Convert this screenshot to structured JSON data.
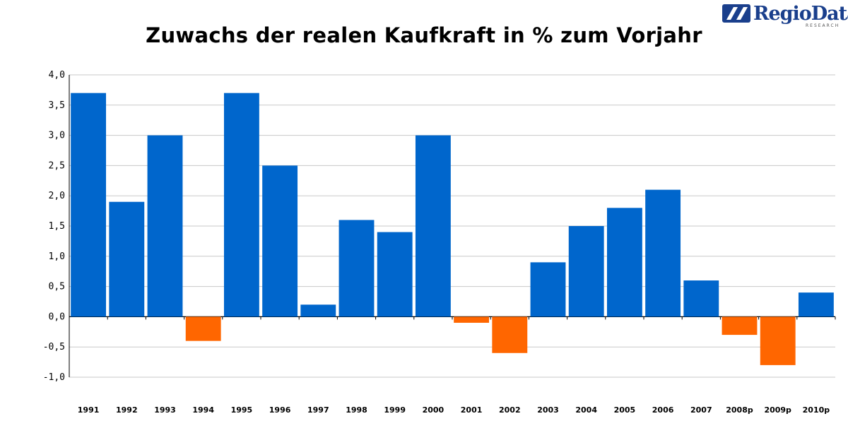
{
  "logo": {
    "text": "RegioData",
    "subtext": "RESEARCH",
    "color": "#1a3f8c"
  },
  "chart_data": {
    "type": "bar",
    "title": "Zuwachs der realen Kaufkraft in % zum Vorjahr",
    "xlabel": "",
    "ylabel": "",
    "categories": [
      "1991",
      "1992",
      "1993",
      "1994",
      "1995",
      "1996",
      "1997",
      "1998",
      "1999",
      "2000",
      "2001",
      "2002",
      "2003",
      "2004",
      "2005",
      "2006",
      "2007",
      "2008p",
      "2009p",
      "2010p"
    ],
    "values": [
      3.7,
      1.9,
      3.0,
      -0.4,
      3.7,
      2.5,
      0.2,
      1.6,
      1.4,
      3.0,
      -0.1,
      -0.6,
      0.9,
      1.5,
      1.8,
      2.1,
      0.6,
      -0.3,
      -0.8,
      0.4
    ],
    "ylim": [
      -1.0,
      4.0
    ],
    "yticks": [
      "-1,0",
      "-0,5",
      "0,0",
      "0,5",
      "1,0",
      "1,5",
      "2,0",
      "2,5",
      "3,0",
      "3,5",
      "4,0"
    ],
    "ytick_values": [
      -1.0,
      -0.5,
      0.0,
      0.5,
      1.0,
      1.5,
      2.0,
      2.5,
      3.0,
      3.5,
      4.0
    ],
    "grid": true,
    "legend": "none",
    "colors": {
      "positive": "#0066cc",
      "negative": "#ff6600",
      "grid": "#c8c8c8",
      "axis": "#000000"
    }
  }
}
